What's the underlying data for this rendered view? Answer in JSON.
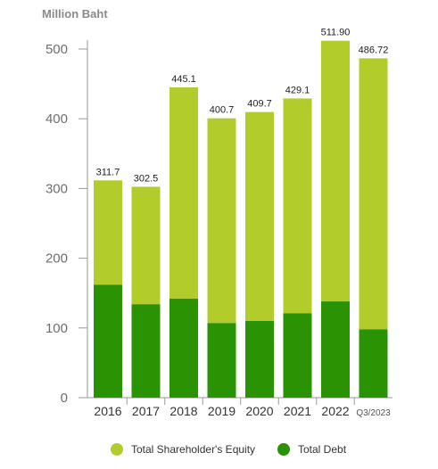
{
  "chart_data": {
    "type": "bar",
    "stacked": true,
    "unit_label": "Million Baht",
    "categories": [
      "2016",
      "2017",
      "2018",
      "2019",
      "2020",
      "2021",
      "2022",
      "Q3/2023"
    ],
    "totals": [
      "311.7",
      "302.5",
      "445.1",
      "400.7",
      "409.7",
      "429.1",
      "511.90",
      "486.72"
    ],
    "series": [
      {
        "name": "Total Debt",
        "color": "#2a9304",
        "values": [
          162,
          134,
          142,
          107,
          110,
          121,
          138,
          98
        ]
      },
      {
        "name": "Total Shareholder's Equity",
        "color": "#b2cd2b",
        "values": [
          149.7,
          168.5,
          303.1,
          293.7,
          299.7,
          308.1,
          373.9,
          388.72
        ]
      }
    ],
    "legend_order": [
      "Total Shareholder's Equity",
      "Total Debt"
    ],
    "yticks": [
      0,
      100,
      200,
      300,
      400,
      500
    ],
    "ylim": [
      0,
      500
    ],
    "grid": false,
    "legend_position": "bottom"
  }
}
